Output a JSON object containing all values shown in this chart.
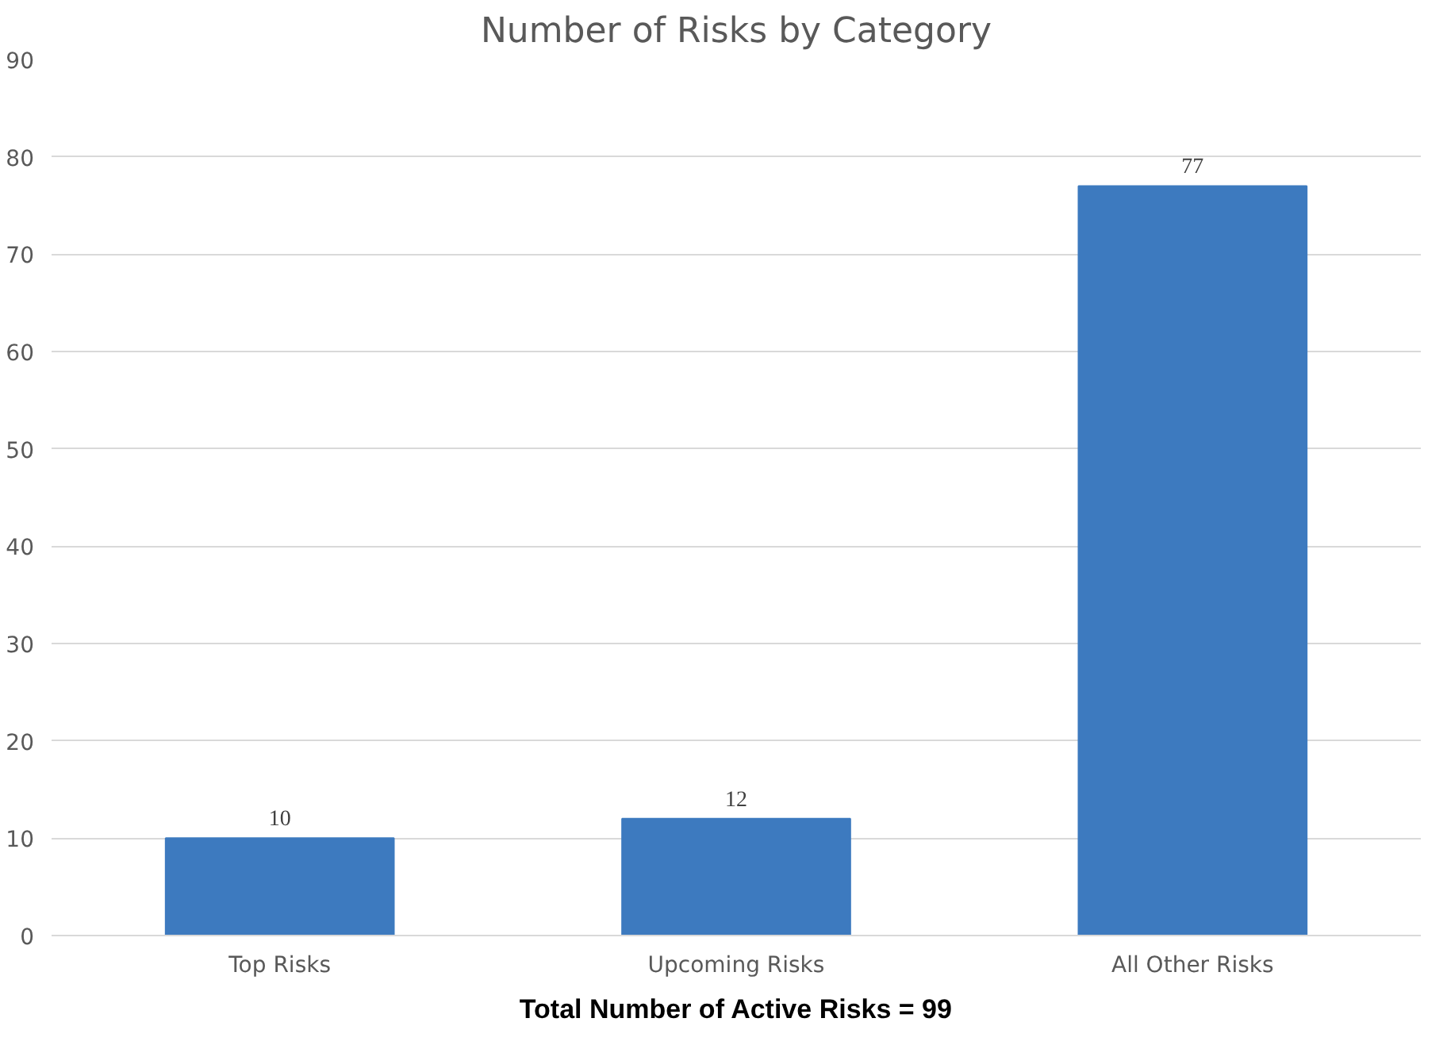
{
  "chart_data": {
    "type": "bar",
    "title": "Number of Risks by Category",
    "categories": [
      "Top Risks",
      "Upcoming Risks",
      "All Other Risks"
    ],
    "values": [
      10,
      12,
      77
    ],
    "colors": [
      "#3d7abf",
      "#3d7abf",
      "#3d7abf"
    ],
    "ylim": [
      0,
      90
    ],
    "yticks": [
      0,
      10,
      20,
      30,
      40,
      50,
      60,
      70,
      80,
      90
    ],
    "grid": "y",
    "data_labels": true,
    "annotations": [
      "Total Number of Active Risks = 99"
    ]
  }
}
